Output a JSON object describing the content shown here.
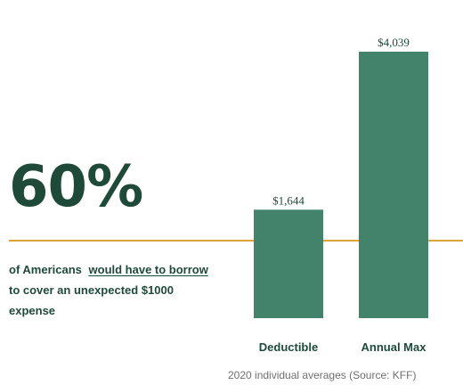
{
  "stat": {
    "value": "60%",
    "caption_prefix": "of Americans",
    "caption_link": "would have to borrow",
    "caption_line2": "to cover an unexpected $1000",
    "caption_line3": "expense"
  },
  "chart_data": {
    "type": "bar",
    "categories": [
      "Deductible",
      "Annual Max"
    ],
    "values": [
      1644,
      4039
    ],
    "value_labels": [
      "$1,644",
      "$4,039"
    ],
    "ylim": [
      0,
      4039
    ],
    "grid": false,
    "source": "2020 individual averages (Source: KFF)",
    "colors": {
      "bar": "#43826b",
      "divider": "#e0a23a",
      "text": "#1f4a3a"
    }
  }
}
